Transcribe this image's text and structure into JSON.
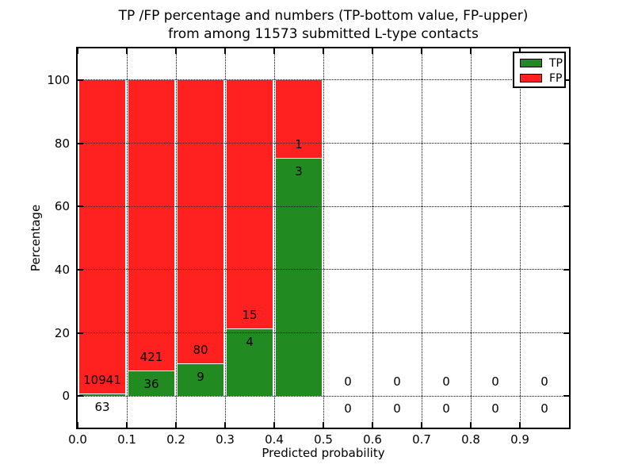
{
  "figure": {
    "title_line1": "TP /FP percentage and numbers (TP-bottom value, FP-upper)",
    "title_line2": "from among 11573 submitted L-type contacts",
    "xlabel": "Predicted probability",
    "ylabel": "Percentage"
  },
  "colors": {
    "tp_green": "#218a21",
    "fp_red": "#ff2020",
    "grid": "#000000",
    "text": "#000000",
    "background": "#ffffff"
  },
  "legend": {
    "position": "upper right",
    "entries": [
      {
        "label": "TP",
        "color": "#218a21"
      },
      {
        "label": "FP",
        "color": "#ff2020"
      }
    ]
  },
  "chart_data": {
    "type": "bar",
    "stacked": true,
    "normalized": "each bin scaled to 100%",
    "title": "TP /FP percentage and numbers (TP-bottom value, FP-upper) from among 11573 submitted L-type contacts",
    "xlabel": "Predicted probability",
    "ylabel": "Percentage",
    "total_contacts": 11573,
    "bin_width": 0.1,
    "bin_starts": [
      0.0,
      0.1,
      0.2,
      0.3,
      0.4,
      0.5,
      0.6,
      0.7,
      0.8,
      0.9
    ],
    "categories": [
      "0.0-0.1",
      "0.1-0.2",
      "0.2-0.3",
      "0.3-0.4",
      "0.4-0.5",
      "0.5-0.6",
      "0.6-0.7",
      "0.7-0.8",
      "0.8-0.9",
      "0.9-1.0"
    ],
    "series": [
      {
        "name": "TP",
        "color": "#218a21",
        "counts": [
          63,
          36,
          9,
          4,
          3,
          0,
          0,
          0,
          0,
          0
        ]
      },
      {
        "name": "FP",
        "color": "#ff2020",
        "counts": [
          10941,
          421,
          80,
          15,
          1,
          0,
          0,
          0,
          0,
          0
        ]
      }
    ],
    "tp_percent_of_bin": [
      0.57,
      7.88,
      10.11,
      21.05,
      75.0,
      null,
      null,
      null,
      null,
      null
    ],
    "xlim": [
      0.0,
      1.0
    ],
    "ylim": [
      -10,
      110
    ],
    "xticks": [
      "0.0",
      "0.1",
      "0.2",
      "0.3",
      "0.4",
      "0.5",
      "0.6",
      "0.7",
      "0.8",
      "0.9"
    ],
    "yticks": [
      0,
      20,
      40,
      60,
      80,
      100
    ],
    "grid": "dotted black, drawn over bars",
    "legend_position": "upper right"
  }
}
